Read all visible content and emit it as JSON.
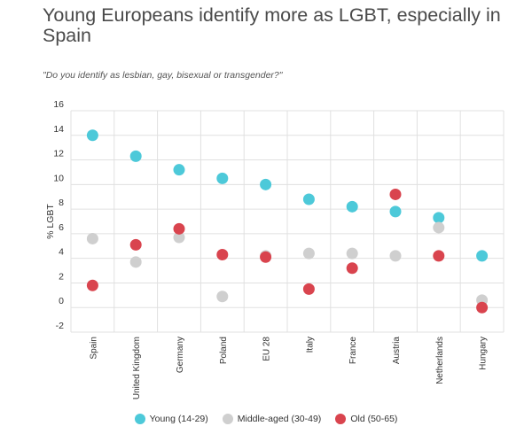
{
  "chart_data": {
    "type": "scatter",
    "title": "Young Europeans identify more as LGBT, especially in Spain",
    "subtitle": "\"Do you identify as lesbian, gay, bisexual or transgender?\"",
    "ylabel": "% LGBT",
    "xlabel": "",
    "ylim": [
      -2,
      16
    ],
    "yticks": [
      -2,
      0,
      2,
      4,
      6,
      8,
      10,
      12,
      14,
      16
    ],
    "grid": true,
    "categories": [
      "Spain",
      "United Kingdom",
      "Germany",
      "Poland",
      "EU 28",
      "Italy",
      "France",
      "Austria",
      "Netherlands",
      "Hungary"
    ],
    "series": [
      {
        "name": "Young (14-29)",
        "color": "#4dc9d9",
        "values": [
          14.0,
          12.3,
          11.2,
          10.5,
          10.0,
          8.8,
          8.2,
          7.8,
          7.3,
          4.2
        ]
      },
      {
        "name": "Middle-aged (30-49)",
        "color": "#cfcfcf",
        "values": [
          5.6,
          3.7,
          5.7,
          0.9,
          4.2,
          4.4,
          4.4,
          4.2,
          6.5,
          0.6
        ]
      },
      {
        "name": "Old (50-65)",
        "color": "#d9444e",
        "values": [
          1.8,
          5.1,
          6.4,
          4.3,
          4.1,
          1.5,
          3.2,
          9.2,
          4.2,
          0.0
        ]
      }
    ],
    "legend_position": "bottom-center"
  }
}
